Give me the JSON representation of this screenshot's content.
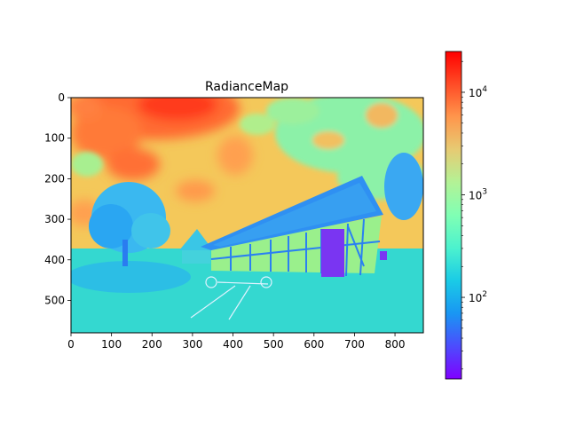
{
  "chart_data": {
    "type": "heatmap",
    "title": "RadianceMap",
    "colormap": "rainbow",
    "x_ticks": [
      0,
      100,
      200,
      300,
      400,
      500,
      600,
      700,
      800
    ],
    "y_ticks": [
      0,
      100,
      200,
      300,
      400,
      500
    ],
    "xlim": [
      0,
      870
    ],
    "ylim": [
      580,
      0
    ],
    "colorbar": {
      "scale": "log",
      "range": [
        16,
        25000
      ],
      "ticks": [
        {
          "value": 100,
          "mantissa": "10",
          "exponent": "2"
        },
        {
          "value": 1000,
          "mantissa": "10",
          "exponent": "3"
        },
        {
          "value": 10000,
          "mantissa": "10",
          "exponent": "4"
        }
      ]
    },
    "scene": {
      "sky_color": "#f4c85a",
      "hot_sky_color": "#ff3a1a",
      "cloud_color": "#8cf1a8",
      "ground_color": "#34d8d0",
      "shadow_color": "#2ab4ee",
      "wall_color": "#9af08c",
      "roof_color": "#2f90f2",
      "window_color": "#7a35f2"
    }
  }
}
